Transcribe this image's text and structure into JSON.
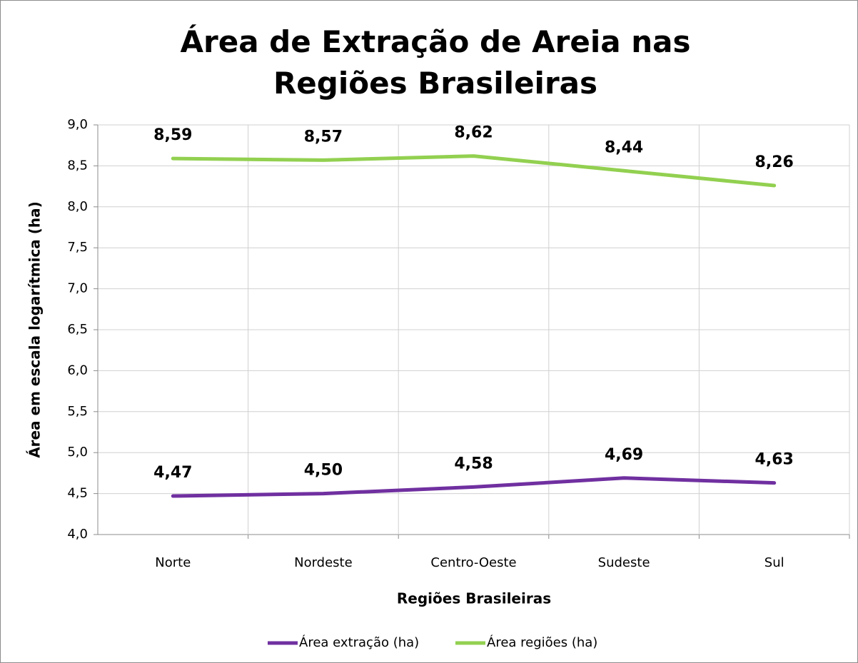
{
  "chart_data": {
    "type": "line",
    "title": "Área de Extração de Areia nas Regiões Brasileiras",
    "x_label": "Regiões Brasileiras",
    "y_label": "Área em escala logarítmica (ha)",
    "categories": [
      "Norte",
      "Nordeste",
      "Centro-Oeste",
      "Sudeste",
      "Sul"
    ],
    "series": [
      {
        "name": "Área extração (ha)",
        "color": "#7030a0",
        "values": [
          4.47,
          4.5,
          4.58,
          4.69,
          4.63
        ],
        "value_labels": [
          "4,47",
          "4,50",
          "4,58",
          "4,69",
          "4,63"
        ]
      },
      {
        "name": "Área regiões (ha)",
        "color": "#92d050",
        "values": [
          8.59,
          8.57,
          8.62,
          8.44,
          8.26
        ],
        "value_labels": [
          "8,59",
          "8,57",
          "8,62",
          "8,44",
          "8,26"
        ]
      }
    ],
    "ylim": [
      4.0,
      9.0
    ],
    "yticks": [
      {
        "value": 4.0,
        "label": "4,0"
      },
      {
        "value": 4.5,
        "label": "4,5"
      },
      {
        "value": 5.0,
        "label": "5,0"
      },
      {
        "value": 5.5,
        "label": "5,5"
      },
      {
        "value": 6.0,
        "label": "6,0"
      },
      {
        "value": 6.5,
        "label": "6,5"
      },
      {
        "value": 7.0,
        "label": "7,0"
      },
      {
        "value": 7.5,
        "label": "7,5"
      },
      {
        "value": 8.0,
        "label": "8,0"
      },
      {
        "value": 8.5,
        "label": "8,5"
      },
      {
        "value": 9.0,
        "label": "9,0"
      }
    ],
    "grid": true,
    "legend": "bottom"
  }
}
